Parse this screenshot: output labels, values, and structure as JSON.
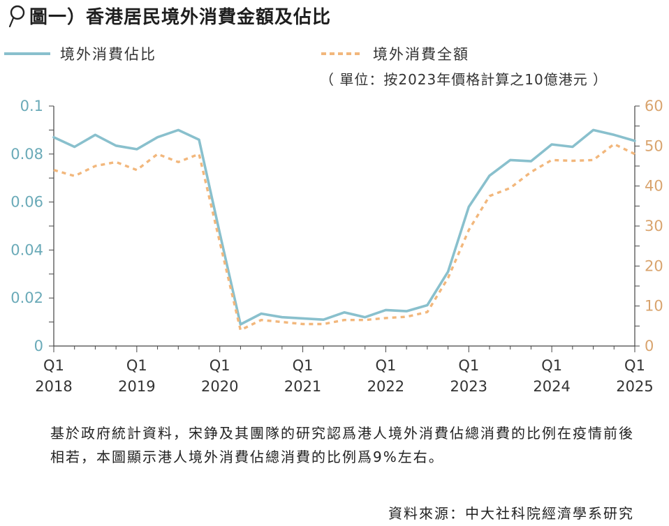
{
  "header": {
    "title": "圖一）香港居民境外消費金額及佔比",
    "icon": "magnifier-icon"
  },
  "legend": {
    "ratio_label": "境外消費佔比",
    "amount_label": "境外消費全額"
  },
  "unit_note": "（ 單位：按2023年價格計算之10億港元 ）",
  "caption": "基於政府統計資料，宋錚及其團隊的研究認爲港人境外消費佔總消費的比例在疫情前後相若，本圖顯示港人境外消費佔總消費的比例爲9%左右。",
  "source": "資料來源：中大社科院經濟學系研究",
  "colors": {
    "ratio": "#89c0cd",
    "amount": "#f2b77c",
    "left_axis": "#6aaab8",
    "right_axis": "#d9a46e",
    "axis": "#444444"
  },
  "chart_data": {
    "type": "line",
    "x": [
      "2018 Q1",
      "2018 Q2",
      "2018 Q3",
      "2018 Q4",
      "2019 Q1",
      "2019 Q2",
      "2019 Q3",
      "2019 Q4",
      "2020 Q1",
      "2020 Q2",
      "2020 Q3",
      "2020 Q4",
      "2021 Q1",
      "2021 Q2",
      "2021 Q3",
      "2021 Q4",
      "2022 Q1",
      "2022 Q2",
      "2022 Q3",
      "2022 Q4",
      "2023 Q1",
      "2023 Q2",
      "2023 Q3",
      "2023 Q4",
      "2024 Q1",
      "2024 Q2",
      "2024 Q3",
      "2024 Q4",
      "2025 Q1"
    ],
    "x_tick_labels": [
      {
        "q": "Q1",
        "year": "2018"
      },
      {
        "q": "Q1",
        "year": "2019"
      },
      {
        "q": "Q1",
        "year": "2020"
      },
      {
        "q": "Q1",
        "year": "2021"
      },
      {
        "q": "Q1",
        "year": "2022"
      },
      {
        "q": "Q1",
        "year": "2023"
      },
      {
        "q": "Q1",
        "year": "2024"
      },
      {
        "q": "Q1",
        "year": "2025"
      }
    ],
    "x_tick_index": [
      0,
      4,
      8,
      12,
      16,
      20,
      24,
      28
    ],
    "series": [
      {
        "name": "境外消費佔比",
        "axis": "left",
        "style": "solid",
        "values": [
          0.087,
          0.083,
          0.088,
          0.0835,
          0.082,
          0.087,
          0.09,
          0.086,
          0.047,
          0.009,
          0.0135,
          0.012,
          0.0115,
          0.011,
          0.014,
          0.012,
          0.015,
          0.0145,
          0.017,
          0.031,
          0.058,
          0.071,
          0.0775,
          0.077,
          0.084,
          0.083,
          0.09,
          0.088,
          0.0855
        ]
      },
      {
        "name": "境外消費全額",
        "axis": "right",
        "style": "dashed",
        "values": [
          44,
          42.5,
          45,
          46,
          44,
          48,
          46,
          48,
          26,
          4,
          6.5,
          6,
          5.5,
          5.5,
          6.5,
          6.5,
          7,
          7.3,
          8.5,
          17,
          29,
          37.5,
          39.5,
          43.5,
          46.5,
          46.3,
          46.5,
          50.5,
          48
        ]
      }
    ],
    "y_left": {
      "range": [
        0,
        0.1
      ],
      "ticks": [
        "0",
        "0.02",
        "0.04",
        "0.06",
        "0.08",
        "0.1"
      ],
      "tick_values": [
        0,
        0.02,
        0.04,
        0.06,
        0.08,
        0.1
      ]
    },
    "y_right": {
      "range": [
        0,
        60
      ],
      "ticks": [
        "0",
        "10",
        "20",
        "30",
        "40",
        "50",
        "60"
      ],
      "tick_values": [
        0,
        10,
        20,
        30,
        40,
        50,
        60
      ]
    },
    "grid": false,
    "legend_position": "top"
  }
}
